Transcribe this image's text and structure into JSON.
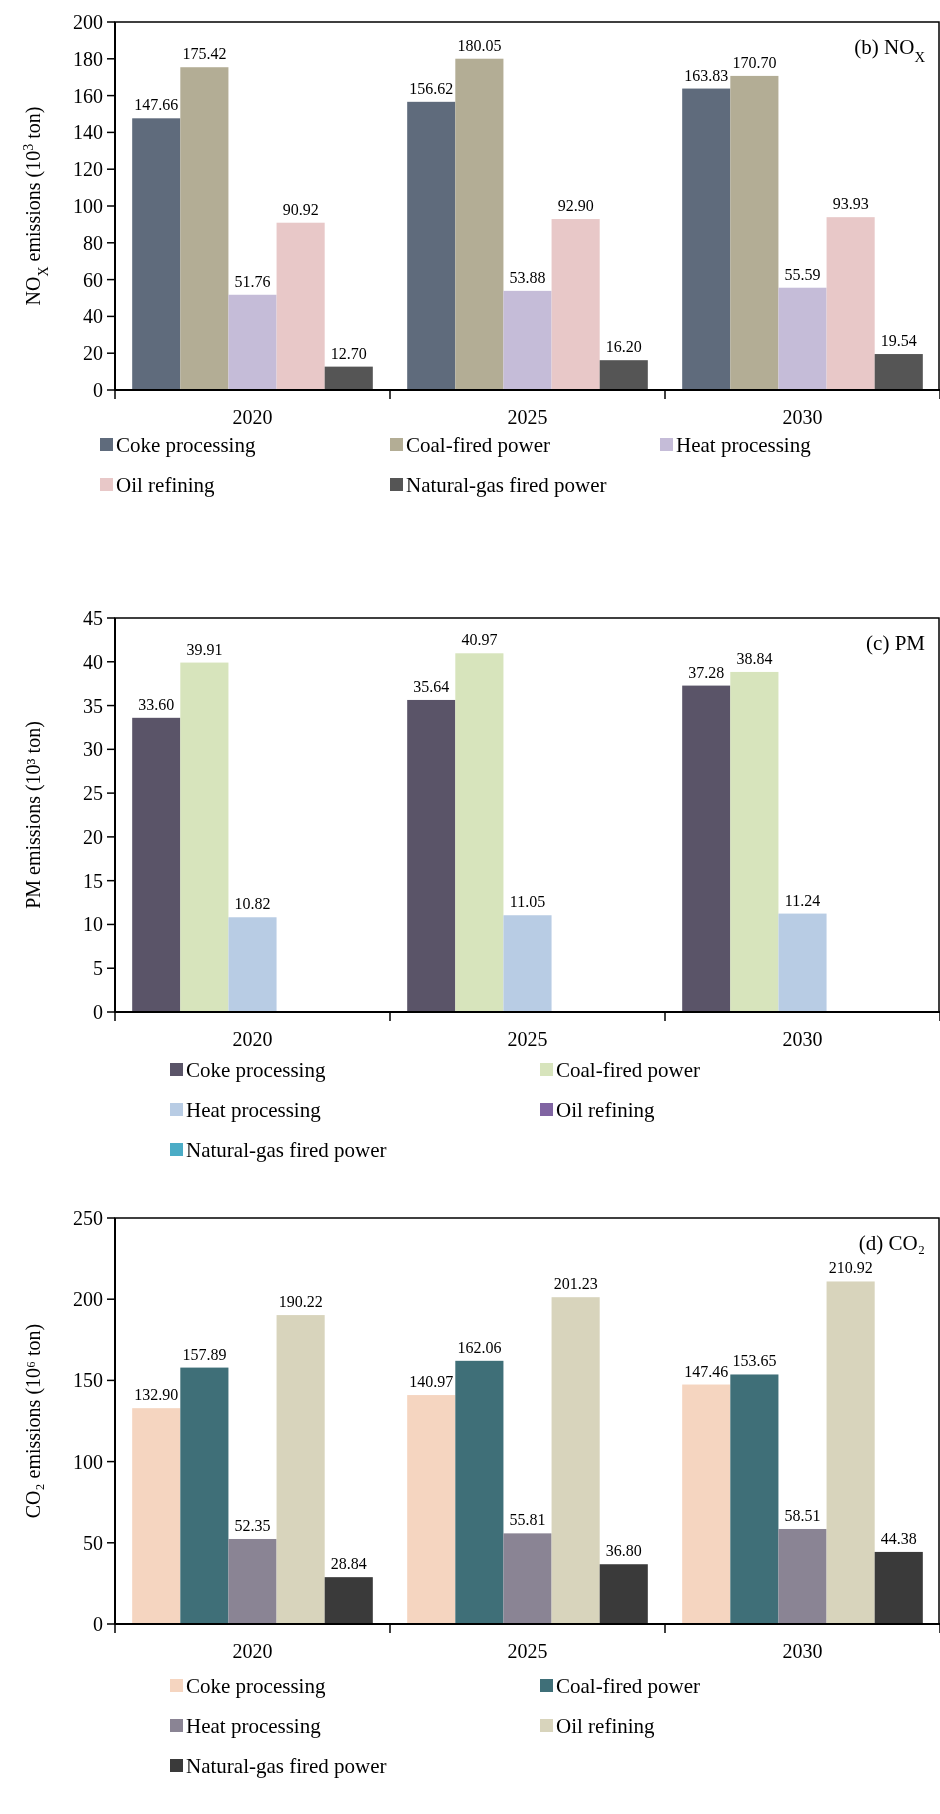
{
  "chart_data": [
    {
      "type": "bar",
      "title": "(b) NO$_{X}$",
      "ylabel": "NO$_{X}$ emissions (10$^{3}$ ton)",
      "categories": [
        "2020",
        "2025",
        "2030"
      ],
      "ylim": [
        0,
        200
      ],
      "yticks": [
        0,
        20,
        40,
        60,
        80,
        100,
        120,
        140,
        160,
        180,
        200
      ],
      "legend": "bottom",
      "grid": false,
      "series": [
        {
          "name": "Coke processing",
          "color": "#5f6b7c",
          "values": [
            147.66,
            156.62,
            163.83
          ],
          "value_labels": [
            "147.66",
            "156.62",
            "163.83"
          ]
        },
        {
          "name": "Coal-fired power",
          "color": "#b3ad95",
          "values": [
            175.42,
            180.05,
            170.7
          ],
          "value_labels": [
            "175.42",
            "180.05",
            "170.70"
          ]
        },
        {
          "name": "Heat processing",
          "color": "#c5bcd8",
          "values": [
            51.76,
            53.88,
            55.59
          ],
          "value_labels": [
            "51.76",
            "53.88",
            "55.59"
          ]
        },
        {
          "name": "Oil refining",
          "color": "#e8c8c8",
          "values": [
            90.92,
            92.9,
            93.93
          ],
          "value_labels": [
            "90.92",
            "92.90",
            "93.93"
          ]
        },
        {
          "name": "Natural-gas fired power",
          "color": "#555555",
          "values": [
            12.7,
            16.2,
            19.54
          ],
          "value_labels": [
            "12.70",
            "16.20",
            "19.54"
          ]
        }
      ]
    },
    {
      "type": "bar",
      "title": "(c) PM",
      "ylabel": "PM emissions (10³ ton)",
      "categories": [
        "2020",
        "2025",
        "2030"
      ],
      "ylim": [
        0,
        45
      ],
      "yticks": [
        0,
        5,
        10,
        15,
        20,
        25,
        30,
        35,
        40,
        45
      ],
      "legend": "bottom",
      "grid": false,
      "series": [
        {
          "name": "Coke processing",
          "color": "#5a5468",
          "values": [
            33.6,
            35.64,
            37.28
          ],
          "value_labels": [
            "33.60",
            "35.64",
            "37.28"
          ]
        },
        {
          "name": "Coal-fired power",
          "color": "#d7e4bc",
          "values": [
            39.91,
            40.97,
            38.84
          ],
          "value_labels": [
            "39.91",
            "40.97",
            "38.84"
          ]
        },
        {
          "name": "Heat processing",
          "color": "#b8cce4",
          "values": [
            10.82,
            11.05,
            11.24
          ],
          "value_labels": [
            "10.82",
            "11.05",
            "11.24"
          ]
        },
        {
          "name": "Oil refining",
          "color": "#8064a2",
          "values": [
            null,
            null,
            null
          ]
        },
        {
          "name": "Natural-gas fired power",
          "color": "#4bacc6",
          "values": [
            null,
            null,
            null
          ]
        }
      ]
    },
    {
      "type": "bar",
      "title": "(d) CO₂",
      "ylabel": "CO₂ emissions (10⁶ ton)",
      "categories": [
        "2020",
        "2025",
        "2030"
      ],
      "ylim": [
        0,
        250
      ],
      "yticks": [
        0,
        50,
        100,
        150,
        200,
        250
      ],
      "legend": "bottom",
      "grid": false,
      "series": [
        {
          "name": "Coke processing",
          "color": "#f5d5c0",
          "values": [
            132.9,
            140.97,
            147.46
          ],
          "value_labels": [
            "132.90",
            "140.97",
            "147.46"
          ]
        },
        {
          "name": "Coal-fired power",
          "color": "#3f6f78",
          "values": [
            157.89,
            162.06,
            153.65
          ],
          "value_labels": [
            "157.89",
            "162.06",
            "153.65"
          ]
        },
        {
          "name": "Heat processing",
          "color": "#8a8494",
          "values": [
            52.35,
            55.81,
            58.51
          ],
          "value_labels": [
            "52.35",
            "55.81",
            "58.51"
          ]
        },
        {
          "name": "Oil refining",
          "color": "#d8d4bc",
          "values": [
            190.22,
            201.23,
            210.92
          ],
          "value_labels": [
            "190.22",
            "201.23",
            "210.92"
          ]
        },
        {
          "name": "Natural-gas fired power",
          "color": "#3a3a3a",
          "values": [
            28.84,
            36.8,
            44.38
          ],
          "value_labels": [
            "28.84",
            "36.80",
            "44.38"
          ]
        }
      ]
    }
  ]
}
